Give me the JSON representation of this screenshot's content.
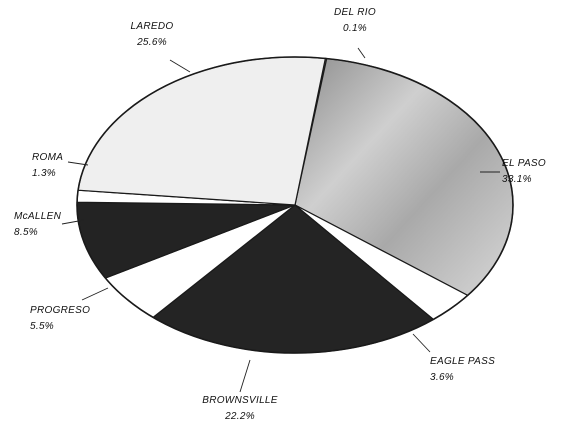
{
  "chart_data": {
    "type": "pie",
    "title": "",
    "slices": [
      {
        "label": "DEL RIO",
        "pct_text": "0.1%",
        "value": 0.1,
        "fill": "#f2f2f2"
      },
      {
        "label": "EL PASO",
        "pct_text": "33.1%",
        "value": 33.1,
        "fill": "#b9b9b9"
      },
      {
        "label": "EAGLE PASS",
        "pct_text": "3.6%",
        "value": 3.6,
        "fill": "#ffffff"
      },
      {
        "label": "BROWNSVILLE",
        "pct_text": "22.2%",
        "value": 22.2,
        "fill": "#242424"
      },
      {
        "label": "PROGRESO",
        "pct_text": "5.5%",
        "value": 5.5,
        "fill": "#ffffff"
      },
      {
        "label": "McALLEN",
        "pct_text": "8.5%",
        "value": 8.5,
        "fill": "#232323"
      },
      {
        "label": "ROMA",
        "pct_text": "1.3%",
        "value": 1.3,
        "fill": "#ffffff"
      },
      {
        "label": "LAREDO",
        "pct_text": "25.6%",
        "value": 25.6,
        "fill": "#efefef"
      }
    ]
  }
}
